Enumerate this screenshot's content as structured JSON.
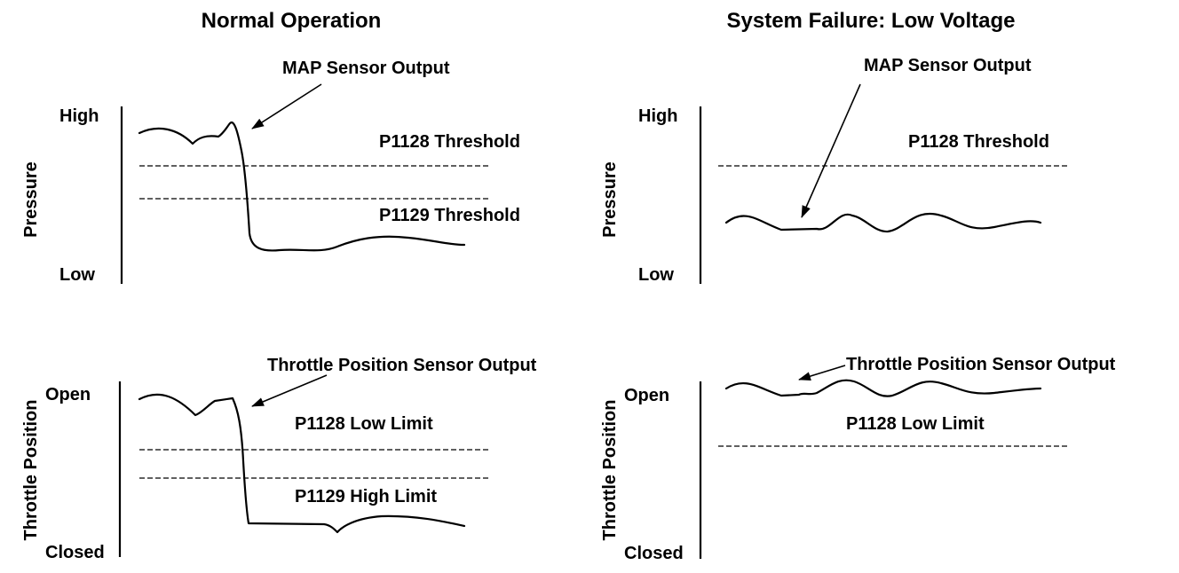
{
  "titles": {
    "left": "Normal Operation",
    "right": "System Failure: Low Voltage"
  },
  "panels": {
    "normal_pressure": {
      "y_axis_label": "Pressure",
      "y_high": "High",
      "y_low": "Low",
      "callout": "MAP Sensor Output",
      "threshold_upper": "P1128 Threshold",
      "threshold_lower": "P1129 Threshold"
    },
    "normal_throttle": {
      "y_axis_label": "Throttle Position",
      "y_high": "Open",
      "y_low": "Closed",
      "callout": "Throttle Position Sensor Output",
      "limit_upper": "P1128 Low Limit",
      "limit_lower": "P1129 High Limit"
    },
    "failure_pressure": {
      "y_axis_label": "Pressure",
      "y_high": "High",
      "y_low": "Low",
      "callout": "MAP Sensor Output",
      "threshold": "P1128 Threshold"
    },
    "failure_throttle": {
      "y_axis_label": "Throttle Position",
      "y_high": "Open",
      "y_low": "Closed",
      "callout": "Throttle Position Sensor Output",
      "limit": "P1128 Low Limit"
    }
  }
}
